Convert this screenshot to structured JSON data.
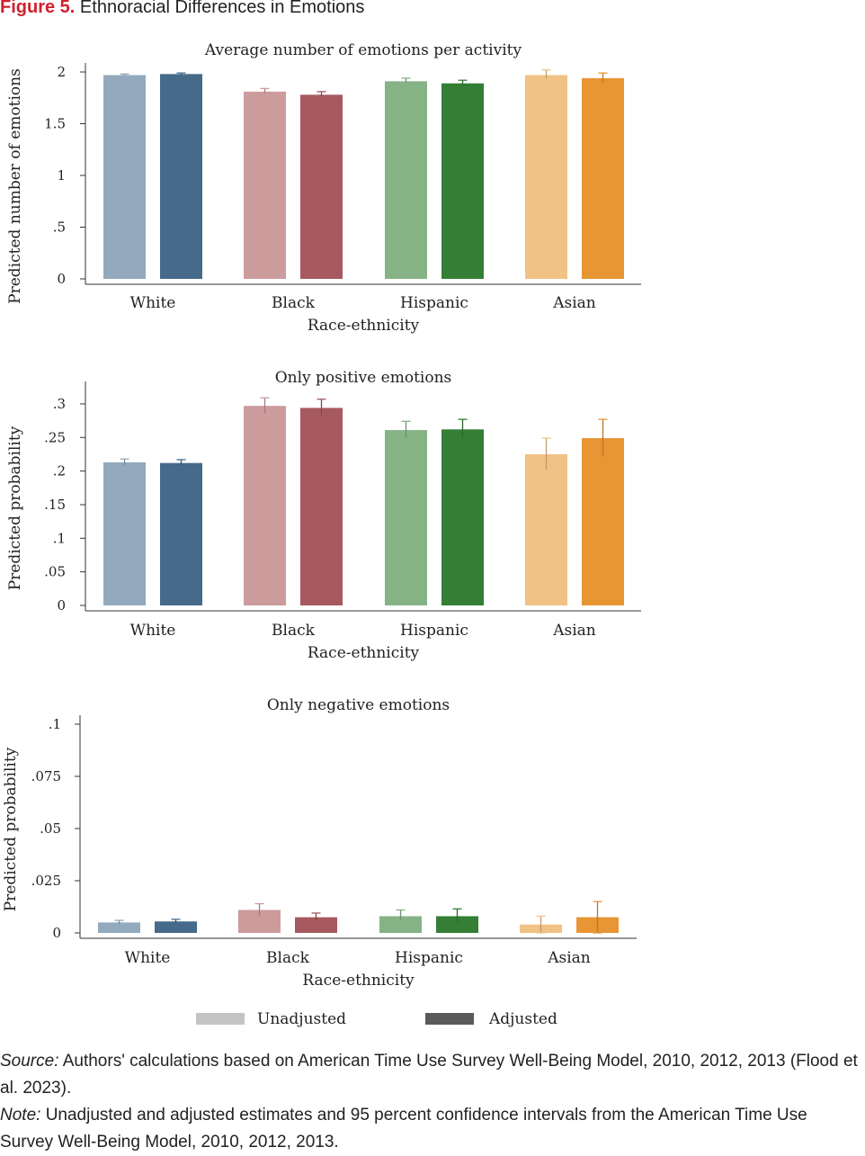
{
  "figure": {
    "label": "Figure 5.",
    "title": "Ethnoracial Differences in Emotions"
  },
  "legend": [
    {
      "label": "Unadjusted",
      "color": "#c4c4c4"
    },
    {
      "label": "Adjusted",
      "color": "#5a5a5a"
    }
  ],
  "group_colors": {
    "White": {
      "unadjusted": "#93a9bd",
      "adjusted": "#466a8a"
    },
    "Black": {
      "unadjusted": "#cc9b9c",
      "adjusted": "#a65a5f"
    },
    "Hispanic": {
      "unadjusted": "#86b385",
      "adjusted": "#347f35"
    },
    "Asian": {
      "unadjusted": "#f1c285",
      "adjusted": "#e89534"
    }
  },
  "chart_data": [
    {
      "type": "bar",
      "title": "Average number of emotions per activity",
      "xlabel": "Race-ethnicity",
      "ylabel": "Predicted number of emotions",
      "categories": [
        "White",
        "Black",
        "Hispanic",
        "Asian"
      ],
      "ylim": [
        0,
        2
      ],
      "yticks": [
        0,
        0.5,
        1,
        1.5,
        2
      ],
      "ytick_labels": [
        "0",
        ".5",
        "1",
        "1.5",
        "2"
      ],
      "series": [
        {
          "name": "Unadjusted",
          "values": [
            1.97,
            1.81,
            1.91,
            1.97
          ],
          "ci_low": [
            1.96,
            1.79,
            1.89,
            1.93
          ],
          "ci_high": [
            1.98,
            1.84,
            1.94,
            2.02
          ]
        },
        {
          "name": "Adjusted",
          "values": [
            1.98,
            1.78,
            1.89,
            1.94
          ],
          "ci_low": [
            1.97,
            1.76,
            1.86,
            1.89
          ],
          "ci_high": [
            1.99,
            1.81,
            1.92,
            1.99
          ]
        }
      ]
    },
    {
      "type": "bar",
      "title": "Only positive emotions",
      "xlabel": "Race-ethnicity",
      "ylabel": "Predicted probability",
      "categories": [
        "White",
        "Black",
        "Hispanic",
        "Asian"
      ],
      "ylim": [
        0,
        0.32
      ],
      "yticks": [
        0,
        0.05,
        0.1,
        0.15,
        0.2,
        0.25,
        0.3
      ],
      "ytick_labels": [
        "0",
        ".05",
        ".1",
        ".15",
        ".2",
        ".25",
        ".3"
      ],
      "series": [
        {
          "name": "Unadjusted",
          "values": [
            0.213,
            0.297,
            0.261,
            0.225
          ],
          "ci_low": [
            0.208,
            0.285,
            0.249,
            0.201
          ],
          "ci_high": [
            0.218,
            0.309,
            0.274,
            0.249
          ]
        },
        {
          "name": "Adjusted",
          "values": [
            0.212,
            0.294,
            0.262,
            0.249
          ],
          "ci_low": [
            0.207,
            0.281,
            0.248,
            0.221
          ],
          "ci_high": [
            0.217,
            0.307,
            0.277,
            0.277
          ]
        }
      ]
    },
    {
      "type": "bar",
      "title": "Only negative emotions",
      "xlabel": "Race-ethnicity",
      "ylabel": "Predicted probability",
      "categories": [
        "White",
        "Black",
        "Hispanic",
        "Asian"
      ],
      "ylim": [
        0,
        0.1
      ],
      "yticks": [
        0,
        0.025,
        0.05,
        0.075,
        0.1
      ],
      "ytick_labels": [
        "0",
        ".025",
        ".05",
        ".075",
        ".1"
      ],
      "series": [
        {
          "name": "Unadjusted",
          "values": [
            0.005,
            0.011,
            0.008,
            0.004
          ],
          "ci_low": [
            0.004,
            0.008,
            0.006,
            0.0
          ],
          "ci_high": [
            0.006,
            0.014,
            0.011,
            0.008
          ]
        },
        {
          "name": "Adjusted",
          "values": [
            0.0055,
            0.0075,
            0.008,
            0.0075
          ],
          "ci_low": [
            0.0045,
            0.0055,
            0.005,
            0.0
          ],
          "ci_high": [
            0.0065,
            0.0095,
            0.0115,
            0.015
          ]
        }
      ]
    }
  ],
  "source": {
    "label": "Source:",
    "text": "Authors' calculations based on American Time Use Survey Well-Being Model, 2010, 2012, 2013 (Flood et al. 2023)."
  },
  "note": {
    "label": "Note:",
    "text": "Unadjusted and adjusted estimates and 95 percent confidence intervals from the American Time Use Survey Well-Being Model, 2010, 2012, 2013."
  }
}
